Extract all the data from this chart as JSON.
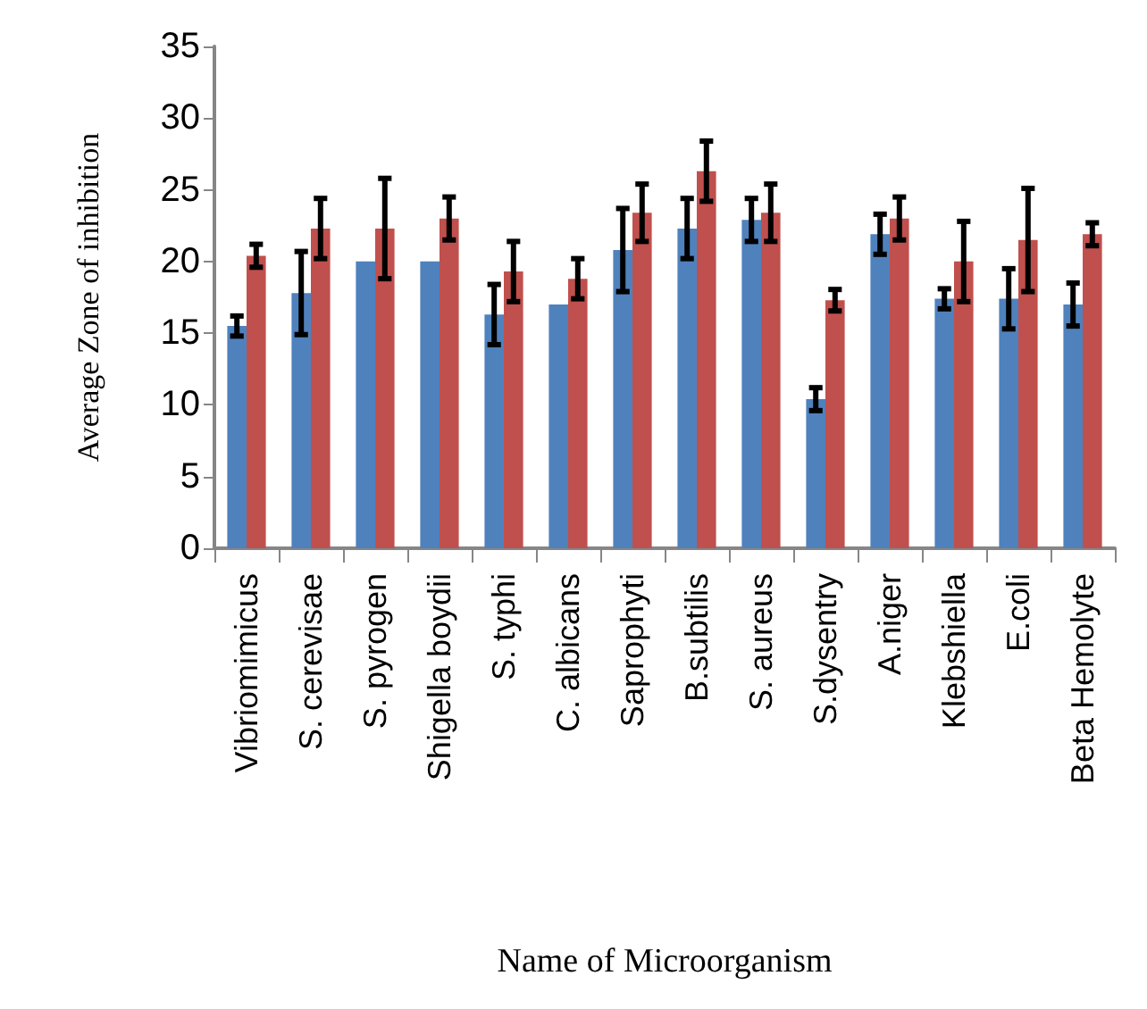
{
  "chart_data": {
    "type": "bar",
    "xlabel": "Name of Microorganism",
    "ylabel": "Average Zone of inhibition",
    "categories": [
      "Vibriomimicus",
      "S. cerevisae",
      "S. pyrogen",
      "Shigella boydii",
      "S. typhi",
      "C. albicans",
      "Saprophyti",
      "B.subtilis",
      "S. aureus",
      "S.dysentry",
      "A.niger",
      "Klebshiella",
      "E.coli",
      "Beta Hemolyte"
    ],
    "series": [
      {
        "color": "#4f81bd",
        "values": [
          15.5,
          17.8,
          20.0,
          20.0,
          16.3,
          17.0,
          20.8,
          22.3,
          22.9,
          10.4,
          21.9,
          17.4,
          17.4,
          17.0
        ],
        "errors": [
          0.7,
          2.9,
          null,
          null,
          2.1,
          null,
          2.9,
          2.1,
          1.5,
          0.8,
          1.4,
          0.7,
          2.1,
          1.5
        ]
      },
      {
        "color": "#c0504d",
        "values": [
          20.4,
          22.3,
          22.3,
          23.0,
          19.3,
          18.8,
          23.4,
          26.3,
          23.4,
          17.3,
          23.0,
          20.0,
          21.5,
          21.9
        ],
        "errors": [
          0.8,
          2.1,
          3.5,
          1.5,
          2.1,
          1.4,
          2.0,
          2.1,
          2.0,
          0.75,
          1.5,
          2.8,
          3.6,
          0.8
        ]
      }
    ],
    "ylim": [
      0,
      35
    ],
    "yticks": [
      0,
      5,
      10,
      15,
      20,
      25,
      30,
      35
    ],
    "grid": false
  }
}
